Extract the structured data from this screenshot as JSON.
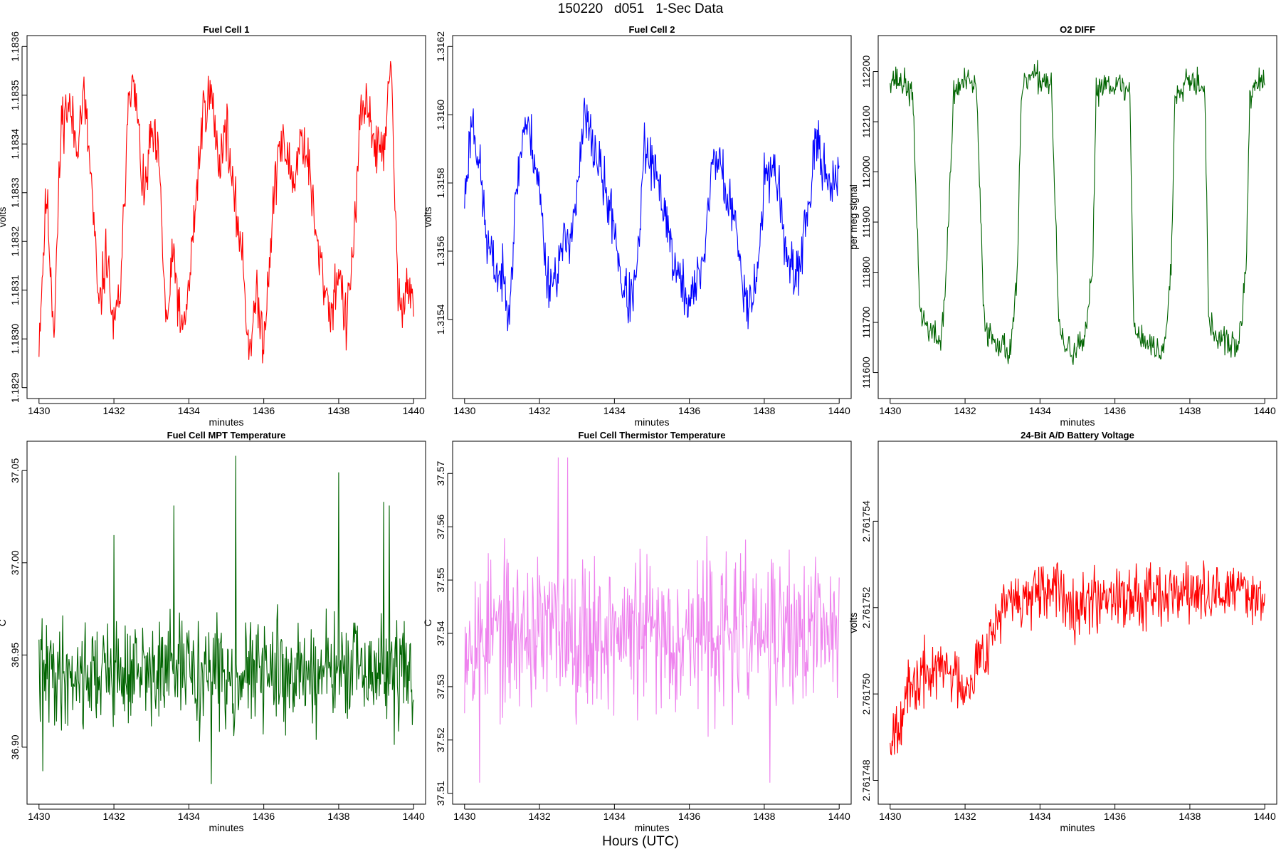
{
  "figure": {
    "title": "150220   d051   1-Sec Data",
    "common_xlabel": "Hours (UTC)"
  },
  "chart_data": [
    {
      "type": "line",
      "title": "Fuel Cell 1",
      "xlabel": "minutes",
      "ylabel": "volts",
      "color": "#ff0000",
      "xlim": [
        1430,
        1440
      ],
      "ylim": [
        1.1829,
        1.1836
      ],
      "xticks": [
        "1430",
        "1432",
        "1434",
        "1436",
        "1438",
        "1440"
      ],
      "yticks": [
        "1.1829",
        "1.1830",
        "1.1831",
        "1.1832",
        "1.1833",
        "1.1834",
        "1.1835",
        "1.1836"
      ],
      "x": [
        1430.0,
        1430.2,
        1430.4,
        1430.6,
        1430.8,
        1431.0,
        1431.2,
        1431.4,
        1431.6,
        1431.8,
        1432.0,
        1432.2,
        1432.4,
        1432.6,
        1432.8,
        1433.0,
        1433.2,
        1433.4,
        1433.6,
        1433.8,
        1434.0,
        1434.2,
        1434.4,
        1434.6,
        1434.8,
        1435.0,
        1435.2,
        1435.4,
        1435.6,
        1435.8,
        1436.0,
        1436.2,
        1436.4,
        1436.6,
        1436.8,
        1437.0,
        1437.2,
        1437.4,
        1437.6,
        1437.8,
        1438.0,
        1438.2,
        1438.4,
        1438.6,
        1438.8,
        1439.0,
        1439.2,
        1439.4,
        1439.6,
        1439.8,
        1440.0
      ],
      "values": [
        1.183,
        1.1833,
        1.18302,
        1.18345,
        1.18348,
        1.1834,
        1.1835,
        1.18332,
        1.18305,
        1.18318,
        1.18301,
        1.18312,
        1.18354,
        1.18348,
        1.18328,
        1.18342,
        1.18336,
        1.18302,
        1.18318,
        1.183,
        1.1831,
        1.1833,
        1.18348,
        1.1835,
        1.18336,
        1.18344,
        1.18328,
        1.1832,
        1.18298,
        1.18308,
        1.183,
        1.18322,
        1.1834,
        1.18338,
        1.18332,
        1.18342,
        1.18336,
        1.1832,
        1.18312,
        1.18305,
        1.18315,
        1.18302,
        1.1832,
        1.18346,
        1.18348,
        1.18338,
        1.1834,
        1.18355,
        1.18305,
        1.18312,
        1.18308
      ],
      "noise": 4.5e-05,
      "seed": 11
    },
    {
      "type": "line",
      "title": "Fuel Cell 2",
      "xlabel": "minutes",
      "ylabel": "volts",
      "color": "#0000ff",
      "xlim": [
        1430,
        1440
      ],
      "ylim": [
        1.3152,
        1.3162
      ],
      "xticks": [
        "1430",
        "1432",
        "1434",
        "1436",
        "1438",
        "1440"
      ],
      "yticks": [
        "1.3154",
        "1.3156",
        "1.3158",
        "1.3160",
        "1.3162"
      ],
      "x": [
        1430.0,
        1430.2,
        1430.4,
        1430.6,
        1430.8,
        1431.0,
        1431.2,
        1431.4,
        1431.6,
        1431.8,
        1432.0,
        1432.2,
        1432.4,
        1432.6,
        1432.8,
        1433.0,
        1433.2,
        1433.4,
        1433.6,
        1433.8,
        1434.0,
        1434.2,
        1434.4,
        1434.6,
        1434.8,
        1435.0,
        1435.2,
        1435.4,
        1435.6,
        1435.8,
        1436.0,
        1436.2,
        1436.4,
        1436.6,
        1436.8,
        1437.0,
        1437.2,
        1437.4,
        1437.6,
        1437.8,
        1438.0,
        1438.2,
        1438.4,
        1438.6,
        1438.8,
        1439.0,
        1439.2,
        1439.4,
        1439.6,
        1439.8,
        1440.0
      ],
      "values": [
        1.31575,
        1.316,
        1.31585,
        1.31562,
        1.31555,
        1.31552,
        1.31545,
        1.3158,
        1.31598,
        1.31592,
        1.31578,
        1.31552,
        1.31552,
        1.3156,
        1.31565,
        1.31575,
        1.316,
        1.31592,
        1.31585,
        1.31575,
        1.31568,
        1.3155,
        1.31545,
        1.31552,
        1.3159,
        1.31585,
        1.31578,
        1.3157,
        1.31555,
        1.3155,
        1.31545,
        1.3155,
        1.3156,
        1.31585,
        1.31588,
        1.31575,
        1.3157,
        1.31552,
        1.31545,
        1.31552,
        1.3158,
        1.31586,
        1.31578,
        1.31558,
        1.3155,
        1.3156,
        1.31575,
        1.31592,
        1.31585,
        1.3158,
        1.3158
      ],
      "noise": 6e-05,
      "seed": 23
    },
    {
      "type": "line",
      "title": "O2 DIFF",
      "xlabel": "minutes",
      "ylabel": "per meg signal",
      "color": "#006400",
      "xlim": [
        1430,
        1440
      ],
      "ylim": [
        111570,
        112250
      ],
      "xticks": [
        "1430",
        "1432",
        "1434",
        "1436",
        "1438",
        "1440"
      ],
      "yticks": [
        "111600",
        "111700",
        "111800",
        "111900",
        "112000",
        "112100",
        "112200"
      ],
      "x": [
        1430.0,
        1430.4,
        1430.6,
        1430.8,
        1431.0,
        1431.35,
        1431.5,
        1431.7,
        1432.0,
        1432.3,
        1432.5,
        1432.6,
        1432.9,
        1433.2,
        1433.4,
        1433.5,
        1433.7,
        1434.0,
        1434.3,
        1434.5,
        1434.6,
        1434.9,
        1435.2,
        1435.4,
        1435.5,
        1435.7,
        1436.0,
        1436.4,
        1436.5,
        1436.7,
        1437.0,
        1437.3,
        1437.5,
        1437.6,
        1437.9,
        1438.2,
        1438.4,
        1438.5,
        1438.7,
        1439.0,
        1439.3,
        1439.5,
        1439.6,
        1439.8,
        1440.0
      ],
      "values": [
        112190,
        112175,
        112150,
        111720,
        111690,
        111660,
        111800,
        112160,
        112180,
        112170,
        111720,
        111680,
        111660,
        111640,
        111800,
        112150,
        112190,
        112185,
        112180,
        111700,
        111660,
        111640,
        111660,
        111800,
        112160,
        112180,
        112175,
        112160,
        111700,
        111670,
        111650,
        111640,
        111800,
        112150,
        112190,
        112180,
        112170,
        111700,
        111670,
        111660,
        111650,
        111800,
        112150,
        112180,
        112170
      ],
      "noise": 22,
      "seed": 37
    },
    {
      "type": "line",
      "title": "Fuel Cell MPT Temperature",
      "xlabel": "minutes",
      "ylabel": "C",
      "color": "#006400",
      "xlim": [
        1430,
        1440
      ],
      "ylim": [
        36.875,
        37.06
      ],
      "xticks": [
        "1430",
        "1432",
        "1434",
        "1436",
        "1438",
        "1440"
      ],
      "yticks": [
        "36.90",
        "36.95",
        "37.00",
        "37.05"
      ],
      "x": [
        1430,
        1440
      ],
      "values": [
        36.94,
        36.94
      ],
      "noise": 0.022,
      "spikes": [
        [
          1430.1,
          36.887
        ],
        [
          1432.0,
          37.015
        ],
        [
          1433.6,
          37.031
        ],
        [
          1434.6,
          36.88
        ],
        [
          1435.25,
          37.058
        ],
        [
          1438.0,
          37.049
        ],
        [
          1439.2,
          37.033
        ],
        [
          1439.35,
          37.031
        ]
      ],
      "seed": 41
    },
    {
      "type": "line",
      "title": "Fuel Cell Thermistor Temperature",
      "xlabel": "minutes",
      "ylabel": "C",
      "color": "#ee82ee",
      "xlim": [
        1430,
        1440
      ],
      "ylim": [
        37.51,
        37.574
      ],
      "xticks": [
        "1430",
        "1432",
        "1434",
        "1436",
        "1438",
        "1440"
      ],
      "yticks": [
        "37.51",
        "37.52",
        "37.53",
        "37.54",
        "37.55",
        "37.56",
        "37.57"
      ],
      "x": [
        1430,
        1440
      ],
      "values": [
        37.54,
        37.54
      ],
      "noise": 0.011,
      "spikes": [
        [
          1430.4,
          37.512
        ],
        [
          1432.5,
          37.573
        ],
        [
          1432.75,
          37.573
        ],
        [
          1438.15,
          37.512
        ]
      ],
      "seed": 53
    },
    {
      "type": "line",
      "title": "24-Bit A/D Battery Voltage",
      "xlabel": "minutes",
      "ylabel": "volts",
      "color": "#ff0000",
      "xlim": [
        1430,
        1440
      ],
      "ylim": [
        2.7617477,
        2.7617556
      ],
      "xticks": [
        "1430",
        "1432",
        "1434",
        "1436",
        "1438",
        "1440"
      ],
      "yticks": [
        "2.761748",
        "2.761750",
        "2.761752",
        "2.761754"
      ],
      "x": [
        1430.0,
        1430.5,
        1431.0,
        1431.5,
        1432.0,
        1432.5,
        1433.0,
        1433.5,
        1434.0,
        1434.5,
        1435.0,
        1435.5,
        1436.0,
        1436.5,
        1437.0,
        1437.5,
        1438.0,
        1438.5,
        1439.0,
        1439.5,
        1440.0
      ],
      "values": [
        2.761749,
        2.76175,
        2.7617505,
        2.7617506,
        2.7617502,
        2.761751,
        2.761752,
        2.7617522,
        2.7617522,
        2.7617524,
        2.7617521,
        2.7617522,
        2.7617524,
        2.7617522,
        2.7617525,
        2.7617523,
        2.7617524,
        2.7617522,
        2.7617524,
        2.7617524,
        2.7617522
      ],
      "noise": 5.5e-07,
      "seed": 67
    }
  ]
}
